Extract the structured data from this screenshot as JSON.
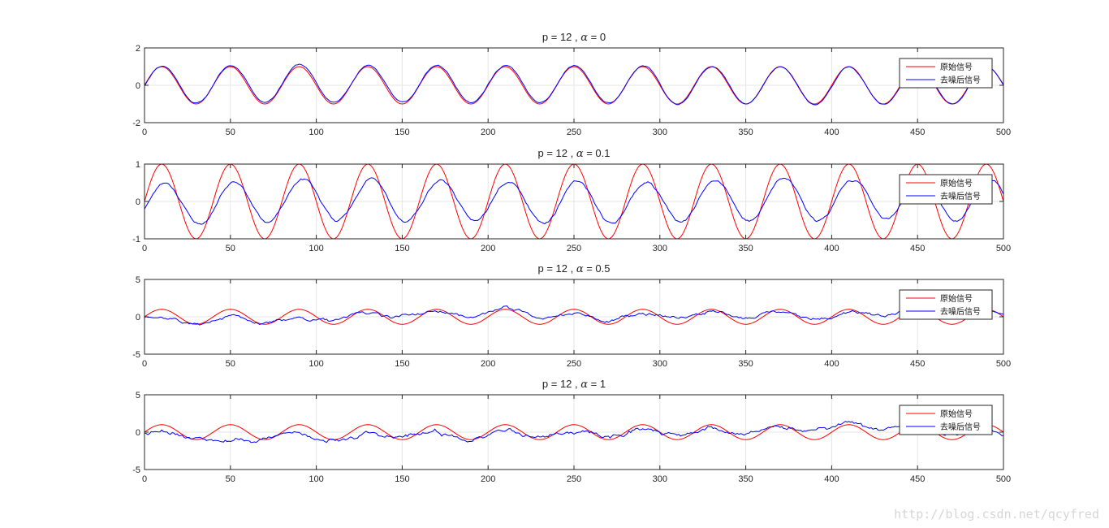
{
  "chart_data": [
    {
      "type": "line",
      "title_prefix": "p = 12 , ",
      "title_alpha_symbol": "α",
      "title_suffix": " = 0",
      "xlim": [
        0,
        500
      ],
      "ylim": [
        -2,
        2
      ],
      "xticks": [
        0,
        50,
        100,
        150,
        200,
        250,
        300,
        350,
        400,
        450,
        500
      ],
      "yticks": [
        -2,
        0,
        2
      ],
      "grid": true,
      "legend_position": "top-right",
      "noise_amplitude": 0.15,
      "series": [
        {
          "name": "原始信号",
          "color": "#ff0000",
          "formula": "sin(2*pi*x/40)",
          "x_range": [
            0,
            500
          ]
        },
        {
          "name": "去噪后信号",
          "color": "#0000ff",
          "description_values": "tracks the original closely with small deviations",
          "x_range": [
            0,
            500
          ]
        }
      ]
    },
    {
      "type": "line",
      "title_prefix": "p = 12 , ",
      "title_alpha_symbol": "α",
      "title_suffix": " = 0.1",
      "xlim": [
        0,
        500
      ],
      "ylim": [
        -1,
        1
      ],
      "xticks": [
        0,
        50,
        100,
        150,
        200,
        250,
        300,
        350,
        400,
        450,
        500
      ],
      "yticks": [
        -1,
        0,
        1
      ],
      "grid": true,
      "legend_position": "top-right",
      "noise_amplitude": 0.12,
      "signal_scale": 0.55,
      "series": [
        {
          "name": "原始信号",
          "color": "#ff0000",
          "formula": "sin(2*pi*x/40)",
          "x_range": [
            0,
            500
          ]
        },
        {
          "name": "去噪后信号",
          "color": "#0000ff",
          "x_range": [
            0,
            500
          ]
        }
      ]
    },
    {
      "type": "line",
      "title_prefix": "p = 12 , ",
      "title_alpha_symbol": "α",
      "title_suffix": " = 0.5",
      "xlim": [
        0,
        500
      ],
      "ylim": [
        -5,
        5
      ],
      "xticks": [
        0,
        50,
        100,
        150,
        200,
        250,
        300,
        350,
        400,
        450,
        500
      ],
      "yticks": [
        -5,
        0,
        5
      ],
      "grid": true,
      "legend_position": "top-right",
      "noise_amplitude": 1.1,
      "series": [
        {
          "name": "原始信号",
          "color": "#ff0000",
          "formula": "sin(2*pi*x/40)",
          "x_range": [
            0,
            500
          ]
        },
        {
          "name": "去噪后信号",
          "color": "#0000ff",
          "x_range": [
            0,
            500
          ]
        }
      ]
    },
    {
      "type": "line",
      "title_prefix": "p = 12 , ",
      "title_alpha_symbol": "α",
      "title_suffix": " = 1",
      "xlim": [
        0,
        500
      ],
      "ylim": [
        -5,
        5
      ],
      "xticks": [
        0,
        50,
        100,
        150,
        200,
        250,
        300,
        350,
        400,
        450,
        500
      ],
      "yticks": [
        -5,
        0,
        5
      ],
      "grid": true,
      "legend_position": "top-right",
      "noise_amplitude": 1.6,
      "series": [
        {
          "name": "原始信号",
          "color": "#ff0000",
          "formula": "sin(2*pi*x/40)",
          "x_range": [
            0,
            500
          ]
        },
        {
          "name": "去噪后信号",
          "color": "#0000ff",
          "x_range": [
            0,
            500
          ]
        }
      ]
    }
  ],
  "watermark": "http://blog.csdn.net/qcyfred"
}
